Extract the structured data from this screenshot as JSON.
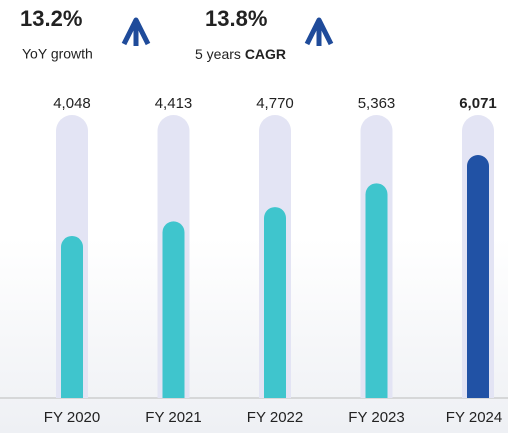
{
  "headline": [
    {
      "value": "13.2%",
      "label": "YoY growth"
    },
    {
      "value": "13.8%",
      "label": "5 years",
      "label_bold": "CAGR"
    }
  ],
  "chart_data": {
    "type": "bar",
    "categories": [
      "FY 2020",
      "FY 2021",
      "FY 2022",
      "FY 2023",
      "FY 2024"
    ],
    "values": [
      4048,
      4413,
      4770,
      5363,
      6071
    ],
    "value_labels": [
      "4,048",
      "4,413",
      "4,770",
      "5,363",
      "6,071"
    ],
    "colors": [
      "#3fc5cd",
      "#3fc5cd",
      "#3fc5cd",
      "#3fc5cd",
      "#2152a5"
    ],
    "bold_labels": [
      false,
      false,
      false,
      false,
      true
    ],
    "track_color": "#e3e4f4"
  }
}
